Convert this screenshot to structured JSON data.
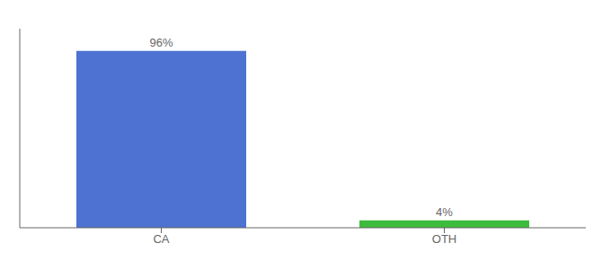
{
  "chart_data": {
    "type": "bar",
    "categories": [
      "CA",
      "OTH"
    ],
    "values": [
      96,
      4
    ],
    "value_labels": [
      "96%",
      "4%"
    ],
    "colors": [
      "#4d72d1",
      "#3dbb3d"
    ],
    "ylim": [
      0,
      108
    ],
    "data_labels": true,
    "tick_labels": "x",
    "grid": false
  }
}
